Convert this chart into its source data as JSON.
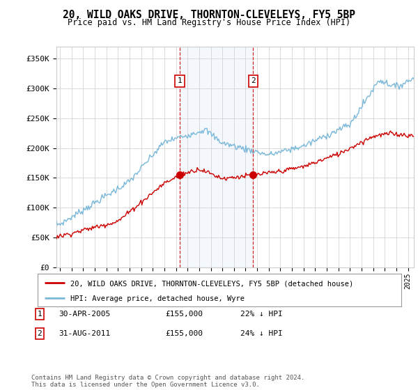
{
  "title": "20, WILD OAKS DRIVE, THORNTON-CLEVELEYS, FY5 5BP",
  "subtitle": "Price paid vs. HM Land Registry's House Price Index (HPI)",
  "title_fontsize": 10.5,
  "subtitle_fontsize": 8.5,
  "ylabel_ticks": [
    "£0",
    "£50K",
    "£100K",
    "£150K",
    "£200K",
    "£250K",
    "£300K",
    "£350K"
  ],
  "ytick_vals": [
    0,
    50000,
    100000,
    150000,
    200000,
    250000,
    300000,
    350000
  ],
  "ylim": [
    0,
    370000
  ],
  "xlim_start": 1994.7,
  "xlim_end": 2025.5,
  "hpi_color": "#7ab8d9",
  "price_color": "#cc0000",
  "grid_color": "#cccccc",
  "bg_plot": "#ffffff",
  "bg_shade": "#ddeeff",
  "transaction1_x": 2005.32,
  "transaction1_y": 155000,
  "transaction2_x": 2011.66,
  "transaction2_y": 155000,
  "legend_line1": "20, WILD OAKS DRIVE, THORNTON-CLEVELEYS, FY5 5BP (detached house)",
  "legend_line2": "HPI: Average price, detached house, Wyre",
  "ann1_label": "1",
  "ann1_date": "30-APR-2005",
  "ann1_price": "£155,000",
  "ann1_hpi": "22% ↓ HPI",
  "ann2_label": "2",
  "ann2_date": "31-AUG-2011",
  "ann2_price": "£155,000",
  "ann2_hpi": "24% ↓ HPI",
  "footer": "Contains HM Land Registry data © Crown copyright and database right 2024.\nThis data is licensed under the Open Government Licence v3.0."
}
